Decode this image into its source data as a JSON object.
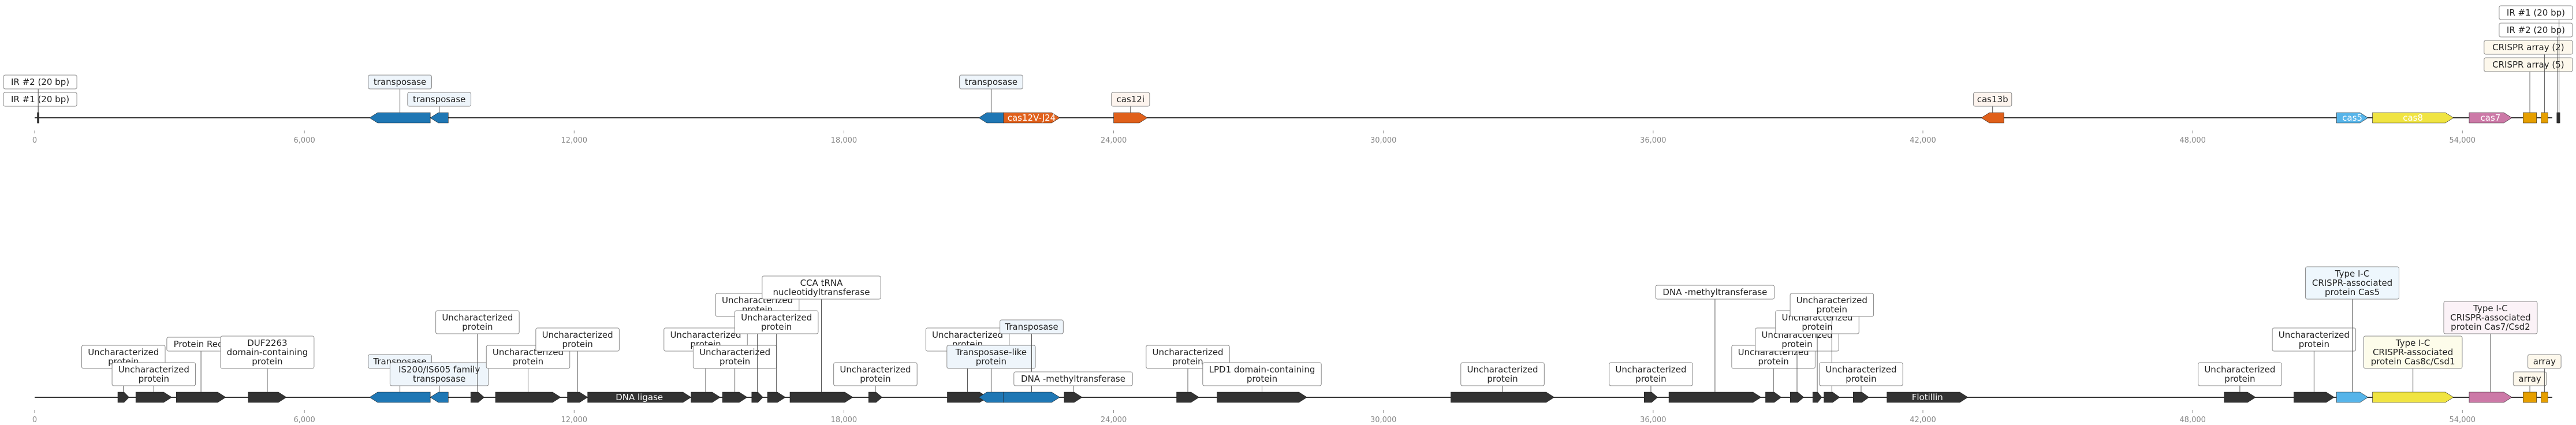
{
  "axis": {
    "max": 56000,
    "ticks": [
      {
        "v": 0,
        "label": "0"
      },
      {
        "v": 6000,
        "label": "6,000"
      },
      {
        "v": 12000,
        "label": "12,000"
      },
      {
        "v": 18000,
        "label": "18,000"
      },
      {
        "v": 24000,
        "label": "24,000"
      },
      {
        "v": 30000,
        "label": "30,000"
      },
      {
        "v": 36000,
        "label": "36,000"
      },
      {
        "v": 42000,
        "label": "42,000"
      },
      {
        "v": 48000,
        "label": "48,000"
      },
      {
        "v": 54000,
        "label": "54,000"
      }
    ]
  },
  "colors": {
    "transposase": "#1f77b4",
    "cas": "#e0601b",
    "cas5": "#56b4e9",
    "cas8": "#f0e442",
    "cas7": "#cc79a7",
    "array": "#e69f00",
    "black": "#333333"
  },
  "tracks": [
    {
      "id": "top",
      "features": [
        {
          "start": 60,
          "end": 90,
          "strand": 0,
          "color": "black",
          "label": "IR #1 (20 bp)",
          "level": 0,
          "bg": "#ffffff"
        },
        {
          "start": 60,
          "end": 90,
          "strand": 0,
          "color": "black",
          "label": "IR #2 (20 bp)",
          "level": 1,
          "bg": "#ffffff"
        },
        {
          "start": 7450,
          "end": 8800,
          "strand": -1,
          "color": "transposase",
          "label": "transposase",
          "level": 1,
          "bg": "#eef5fb"
        },
        {
          "start": 8800,
          "end": 9200,
          "strand": -1,
          "color": "transposase",
          "label": "transposase",
          "level": 0,
          "bg": "#eef5fb"
        },
        {
          "start": 21000,
          "end": 21550,
          "strand": -1,
          "color": "transposase",
          "label": "transposase",
          "level": 1,
          "bg": "#eef5fb"
        },
        {
          "start": 21550,
          "end": 22800,
          "strand": 1,
          "color": "cas",
          "label": "cas12V-J24",
          "level": -1,
          "bg": ""
        },
        {
          "start": 24000,
          "end": 24750,
          "strand": 1,
          "color": "cas",
          "label": "cas12i",
          "level": 0,
          "bg": "#fdf4ee"
        },
        {
          "start": 43300,
          "end": 43800,
          "strand": -1,
          "color": "cas",
          "label": "cas13b",
          "level": 0,
          "bg": "#fdf4ee"
        },
        {
          "start": 51200,
          "end": 51900,
          "strand": 1,
          "color": "cas5",
          "label": "cas5",
          "level": -1,
          "bg": ""
        },
        {
          "start": 52000,
          "end": 53800,
          "strand": 1,
          "color": "cas8",
          "label": "cas8",
          "level": -1,
          "bg": ""
        },
        {
          "start": 54150,
          "end": 55100,
          "strand": 1,
          "color": "cas7",
          "label": "cas7",
          "level": -1,
          "bg": ""
        },
        {
          "start": 55350,
          "end": 55650,
          "strand": 0,
          "color": "array",
          "label": "CRISPR array (5)",
          "level": 2,
          "bg": "#fdf8ec"
        },
        {
          "start": 55750,
          "end": 55900,
          "strand": 0,
          "color": "array",
          "label": "CRISPR array (2)",
          "level": 3,
          "bg": "#fdf8ec"
        },
        {
          "start": 56100,
          "end": 56130,
          "strand": 0,
          "color": "black",
          "label": "IR #2 (20 bp)",
          "level": 4,
          "bg": "#ffffff"
        },
        {
          "start": 56130,
          "end": 56160,
          "strand": 0,
          "color": "black",
          "label": "IR #1 (20 bp)",
          "level": 5,
          "bg": "#ffffff"
        }
      ]
    },
    {
      "id": "bottom",
      "features": [
        {
          "start": 1850,
          "end": 2100,
          "strand": 1,
          "color": "black",
          "label": "Uncharacterized protein",
          "level": 1,
          "bg": "#ffffff"
        },
        {
          "start": 2250,
          "end": 3050,
          "strand": 1,
          "color": "black",
          "label": "Uncharacterized protein",
          "level": 0,
          "bg": "#ffffff"
        },
        {
          "start": 3150,
          "end": 4250,
          "strand": 1,
          "color": "black",
          "label": "Protein RecA",
          "level": 2,
          "bg": "#ffffff"
        },
        {
          "start": 4750,
          "end": 5600,
          "strand": 1,
          "color": "black",
          "label": "DUF2263 domain-containing protein",
          "level": 1,
          "bg": "#ffffff"
        },
        {
          "start": 7450,
          "end": 8800,
          "strand": -1,
          "color": "transposase",
          "label": "Transposase",
          "level": 1,
          "bg": "#eef5fb"
        },
        {
          "start": 8800,
          "end": 9200,
          "strand": -1,
          "color": "transposase",
          "label": "IS200/IS605 family transposase",
          "level": 0,
          "bg": "#eef5fb"
        },
        {
          "start": 9700,
          "end": 10000,
          "strand": 1,
          "color": "black",
          "label": "Uncharacterized protein",
          "level": 3,
          "bg": "#ffffff"
        },
        {
          "start": 10250,
          "end": 11700,
          "strand": 1,
          "color": "black",
          "label": "Uncharacterized protein",
          "level": 1,
          "bg": "#ffffff"
        },
        {
          "start": 11850,
          "end": 12300,
          "strand": 1,
          "color": "black",
          "label": "Uncharacterized protein",
          "level": 2,
          "bg": "#ffffff"
        },
        {
          "start": 12300,
          "end": 14600,
          "strand": 1,
          "color": "black",
          "label": "DNA ligase",
          "level": -1,
          "bg": ""
        },
        {
          "start": 14600,
          "end": 15250,
          "strand": 1,
          "color": "black",
          "label": "Uncharacterized protein",
          "level": 2,
          "bg": "#ffffff"
        },
        {
          "start": 15300,
          "end": 15850,
          "strand": 1,
          "color": "black",
          "label": "Uncharacterized protein",
          "level": 1,
          "bg": "#ffffff"
        },
        {
          "start": 15950,
          "end": 16200,
          "strand": 1,
          "color": "black",
          "label": "Uncharacterized protein",
          "level": 4,
          "bg": "#ffffff"
        },
        {
          "start": 16300,
          "end": 16700,
          "strand": 1,
          "color": "black",
          "label": "Uncharacterized protein",
          "level": 3,
          "bg": "#ffffff"
        },
        {
          "start": 16800,
          "end": 18200,
          "strand": 1,
          "color": "black",
          "label": "CCA tRNA nucleotidyltransferase",
          "level": 5,
          "bg": "#ffffff"
        },
        {
          "start": 18550,
          "end": 18850,
          "strand": 1,
          "color": "black",
          "label": "Uncharacterized protein",
          "level": 0,
          "bg": "#ffffff"
        },
        {
          "start": 20300,
          "end": 21200,
          "strand": 1,
          "color": "black",
          "label": "Uncharacterized protein",
          "level": 2,
          "bg": "#ffffff"
        },
        {
          "start": 21000,
          "end": 21550,
          "strand": -1,
          "color": "transposase",
          "label": "Transposase-like protein",
          "level": 1,
          "bg": "#eef5fb"
        },
        {
          "start": 21550,
          "end": 22800,
          "strand": 1,
          "color": "transposase",
          "label": "Transposase",
          "level": 3,
          "bg": "#eef5fb"
        },
        {
          "start": 22900,
          "end": 23300,
          "strand": 1,
          "color": "black",
          "label": "DNA -methyltransferase",
          "level": 0,
          "bg": "#ffffff"
        },
        {
          "start": 25400,
          "end": 25900,
          "strand": 1,
          "color": "black",
          "label": "Uncharacterized protein",
          "level": 1,
          "bg": "#ffffff"
        },
        {
          "start": 26300,
          "end": 28300,
          "strand": 1,
          "color": "black",
          "label": "LPD1 domain-containing protein",
          "level": 0,
          "bg": "#ffffff"
        },
        {
          "start": 31500,
          "end": 33800,
          "strand": 1,
          "color": "black",
          "label": "Uncharacterized protein",
          "level": 0,
          "bg": "#ffffff"
        },
        {
          "start": 35800,
          "end": 36100,
          "strand": 1,
          "color": "black",
          "label": "Uncharacterized protein",
          "level": 0,
          "bg": "#ffffff"
        },
        {
          "start": 36350,
          "end": 38400,
          "strand": 1,
          "color": "black",
          "label": "DNA -methyltransferase",
          "level": 5,
          "bg": "#ffffff"
        },
        {
          "start": 38500,
          "end": 38850,
          "strand": 1,
          "color": "black",
          "label": "Uncharacterized protein",
          "level": 1,
          "bg": "#ffffff"
        },
        {
          "start": 39050,
          "end": 39350,
          "strand": 1,
          "color": "black",
          "label": "Uncharacterized protein",
          "level": 2,
          "bg": "#ffffff"
        },
        {
          "start": 39550,
          "end": 39750,
          "strand": 1,
          "color": "black",
          "label": "Uncharacterized protein",
          "level": 3,
          "bg": "#ffffff"
        },
        {
          "start": 39800,
          "end": 40150,
          "strand": 1,
          "color": "black",
          "label": "Uncharacterized protein",
          "level": 4,
          "bg": "#ffffff"
        },
        {
          "start": 40450,
          "end": 40800,
          "strand": 1,
          "color": "black",
          "label": "Uncharacterized protein",
          "level": 0,
          "bg": "#ffffff"
        },
        {
          "start": 41200,
          "end": 43000,
          "strand": 1,
          "color": "black",
          "label": "Flotillin",
          "level": -1,
          "bg": ""
        },
        {
          "start": 48700,
          "end": 49400,
          "strand": 1,
          "color": "black",
          "label": "Uncharacterized protein",
          "level": 0,
          "bg": "#ffffff"
        },
        {
          "start": 50250,
          "end": 51150,
          "strand": 1,
          "color": "black",
          "label": "Uncharacterized protein",
          "level": 2,
          "bg": "#ffffff"
        },
        {
          "start": 51200,
          "end": 51900,
          "strand": 1,
          "color": "cas5",
          "label": "Type I-C CRISPR-associated protein Cas5",
          "level": 5,
          "bg": "#eef7fd"
        },
        {
          "start": 52000,
          "end": 53800,
          "strand": 1,
          "color": "cas8",
          "label": "Type I-C CRISPR-associated protein Cas8c/Csd1",
          "level": 1,
          "bg": "#fdfcea"
        },
        {
          "start": 54150,
          "end": 55100,
          "strand": 1,
          "color": "cas7",
          "label": "Type I-C CRISPR-associated protein Cas7/Csd2",
          "level": 3,
          "bg": "#fbf2f7"
        },
        {
          "start": 55350,
          "end": 55650,
          "strand": 0,
          "color": "array",
          "label": "array",
          "level": 0,
          "bg": "#fdf8ec"
        },
        {
          "start": 55750,
          "end": 55900,
          "strand": 0,
          "color": "array",
          "label": "array",
          "level": 1,
          "bg": "#fdf8ec"
        }
      ]
    }
  ]
}
